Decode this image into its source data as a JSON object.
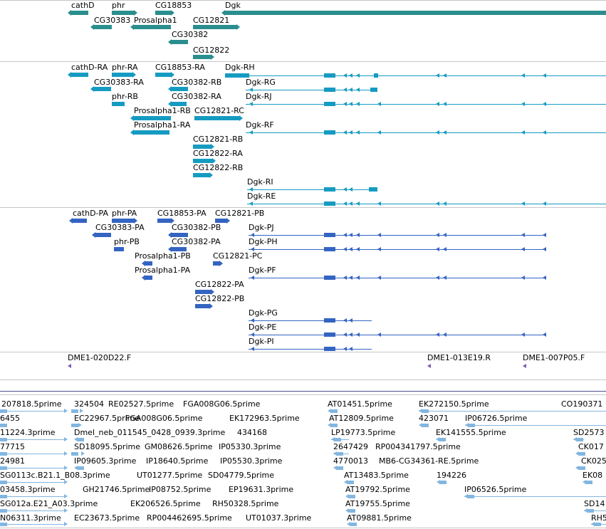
{
  "colors": {
    "gene": "#2b8e8e",
    "transcript": "#159bc2",
    "protein": "#3464c2",
    "clone": "#7a5ab5",
    "est": "#82b6e0",
    "separator": "#c7c7c7",
    "separator_dark": "#4f4f8f"
  },
  "tracks": {
    "genes": [
      {
        "label": "cathD"
      },
      {
        "label": "phr"
      },
      {
        "label": "CG18853"
      },
      {
        "label": "Dgk"
      },
      {
        "label": "CG30383"
      },
      {
        "label": "Prosalpha1"
      },
      {
        "label": "CG12821"
      },
      {
        "label": "CG30382"
      },
      {
        "label": "CG12822"
      }
    ],
    "transcripts": [
      {
        "label": "cathD-RA"
      },
      {
        "label": "phr-RA"
      },
      {
        "label": "CG18853-RA"
      },
      {
        "label": "Dgk-RH"
      },
      {
        "label": "CG30383-RA"
      },
      {
        "label": "CG30382-RB"
      },
      {
        "label": "Dgk-RG"
      },
      {
        "label": "phr-RB"
      },
      {
        "label": "CG30382-RA"
      },
      {
        "label": "Dgk-RJ"
      },
      {
        "label": "Prosalpha1-RB"
      },
      {
        "label": "CG12821-RC"
      },
      {
        "label": "Prosalpha1-RA"
      },
      {
        "label": "Dgk-RF"
      },
      {
        "label": "CG12821-RB"
      },
      {
        "label": "CG12822-RA"
      },
      {
        "label": "CG12822-RB"
      },
      {
        "label": "Dgk-RI"
      },
      {
        "label": "Dgk-RE"
      }
    ],
    "proteins": [
      {
        "label": "cathD-PA"
      },
      {
        "label": "phr-PA"
      },
      {
        "label": "CG18853-PA"
      },
      {
        "label": "CG12821-PB"
      },
      {
        "label": "CG30383-PA"
      },
      {
        "label": "CG30382-PB"
      },
      {
        "label": "Dgk-PJ"
      },
      {
        "label": "phr-PB"
      },
      {
        "label": "CG30382-PA"
      },
      {
        "label": "Dgk-PH"
      },
      {
        "label": "Prosalpha1-PB"
      },
      {
        "label": "CG12821-PC"
      },
      {
        "label": "Prosalpha1-PA"
      },
      {
        "label": "Dgk-PF"
      },
      {
        "label": "CG12822-PA"
      },
      {
        "label": "CG12822-PB"
      },
      {
        "label": "Dgk-PG"
      },
      {
        "label": "Dgk-PE"
      },
      {
        "label": "Dgk-PI"
      }
    ],
    "clones": [
      {
        "label": "DME1-020D22.F"
      },
      {
        "label": "DME1-013E19.R"
      },
      {
        "label": "DME1-007P05.F"
      }
    ],
    "ests": [
      {
        "label": "207818.5prime"
      },
      {
        "label": "324504"
      },
      {
        "label": "RE02527.5prime"
      },
      {
        "label": "FGA008G06.5prime"
      },
      {
        "label": "AT01451.5prime"
      },
      {
        "label": "EK272150.5prime"
      },
      {
        "label": "CO190371"
      },
      {
        "label": "6455"
      },
      {
        "label": "EC22967.5prime"
      },
      {
        "label": "FGA008G06.5prime"
      },
      {
        "label": "EK172963.5prime"
      },
      {
        "label": "AT12809.5prime"
      },
      {
        "label": "423071"
      },
      {
        "label": "IP06726.5prime"
      },
      {
        "label": "11224.3prime"
      },
      {
        "label": "Dmel_neb_011545_0428_0939.3prime"
      },
      {
        "label": "434168"
      },
      {
        "label": "LP19773.5prime"
      },
      {
        "label": "EK141555.5prime"
      },
      {
        "label": "SD2573"
      },
      {
        "label": "77715"
      },
      {
        "label": "SD18095.5prime"
      },
      {
        "label": "GM08626.5prime"
      },
      {
        "label": "IP05330.3prime"
      },
      {
        "label": "2647429"
      },
      {
        "label": "RP004341797.5prime"
      },
      {
        "label": "CK017"
      },
      {
        "label": "24981"
      },
      {
        "label": "IP09605.3prime"
      },
      {
        "label": "IP18640.5prime"
      },
      {
        "label": "IP05530.3prime"
      },
      {
        "label": "4770013"
      },
      {
        "label": "MB6-CG34361-RE.5prime"
      },
      {
        "label": "CK025"
      },
      {
        "label": "SG0113c.B21.1_B08.3prime"
      },
      {
        "label": "UT01277.5prime"
      },
      {
        "label": "SD04779.5prime"
      },
      {
        "label": "AT13483.5prime"
      },
      {
        "label": "194226"
      },
      {
        "label": "EK08"
      },
      {
        "label": "03458.3prime"
      },
      {
        "label": "GH21746.5prime"
      },
      {
        "label": "IP08752.5prime"
      },
      {
        "label": "EP19631.3prime"
      },
      {
        "label": "AT19792.5prime"
      },
      {
        "label": "IP06526.5prime"
      },
      {
        "label": "SG012a.E21_A03.3prime"
      },
      {
        "label": "EK206526.5prime"
      },
      {
        "label": "RH50328.5prime"
      },
      {
        "label": "AT19755.5prime"
      },
      {
        "label": "SD14"
      },
      {
        "label": "N06311.3prime"
      },
      {
        "label": "EC23673.5prime"
      },
      {
        "label": "RP004462695.5prime"
      },
      {
        "label": "UT01037.3prime"
      },
      {
        "label": "AT09881.5prime"
      },
      {
        "label": "RH5"
      }
    ]
  }
}
